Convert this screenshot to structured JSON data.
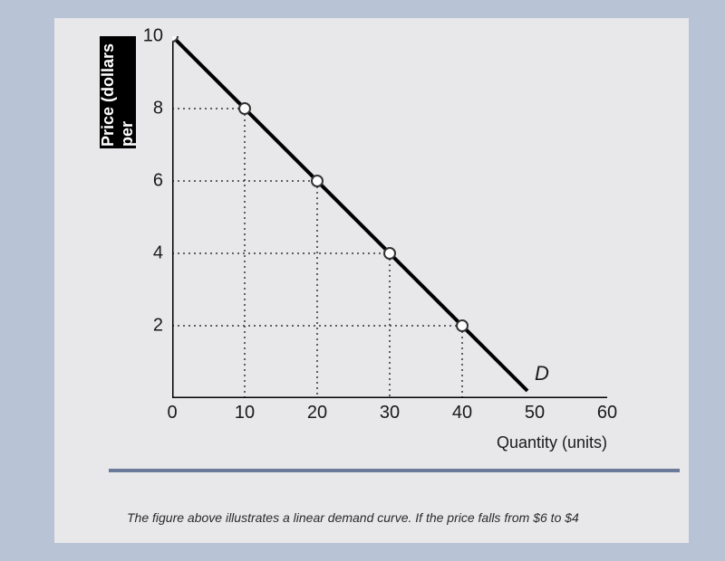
{
  "chart": {
    "type": "line",
    "y_label": "Price (dollars per",
    "x_label": "Quantity (units)",
    "curve_label": "D",
    "x_ticks": [
      0,
      10,
      20,
      30,
      40,
      50,
      60
    ],
    "y_ticks": [
      0,
      2,
      4,
      6,
      8,
      10
    ],
    "xlim": [
      0,
      60
    ],
    "ylim": [
      0,
      10
    ],
    "data_points": [
      {
        "x": 0,
        "y": 10
      },
      {
        "x": 10,
        "y": 8
      },
      {
        "x": 20,
        "y": 6
      },
      {
        "x": 30,
        "y": 4
      },
      {
        "x": 40,
        "y": 2
      }
    ],
    "line_extent": {
      "x1": 0,
      "y1": 10,
      "x2": 49,
      "y2": 0.2
    },
    "line_color": "#000000",
    "point_fill": "#ffffff",
    "point_stroke": "#333333",
    "point_radius": 6,
    "line_width": 4,
    "grid_dash": "2 4",
    "grid_color": "#333333",
    "axis_color": "#000000",
    "background": "#e8e8ea",
    "label_fontsize": 18,
    "tick_fontsize": 20
  },
  "caption": "The figure above illustrates a linear demand curve. If the price falls from $6 to $4"
}
